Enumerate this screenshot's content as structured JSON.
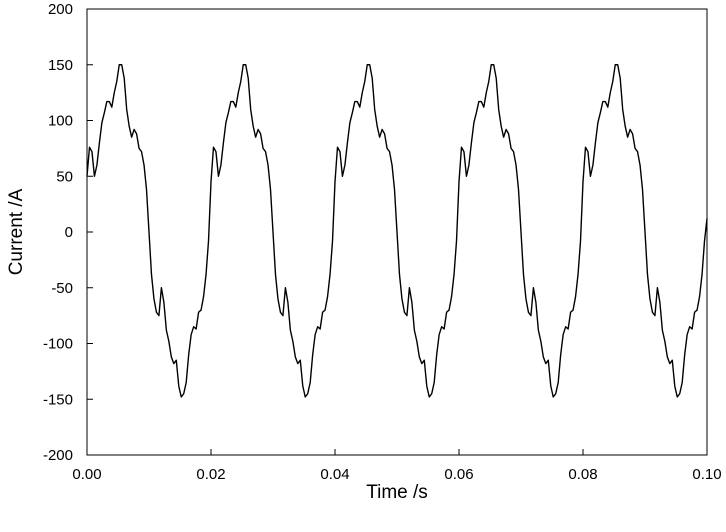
{
  "chart_data": {
    "type": "line",
    "title": "",
    "xlabel": "Time /s",
    "ylabel": "Current /A",
    "xlim": [
      0.0,
      0.1
    ],
    "ylim": [
      -200,
      200
    ],
    "x_ticks": [
      "0.00",
      "0.02",
      "0.04",
      "0.06",
      "0.08",
      "0.10"
    ],
    "x_tick_values": [
      0.0,
      0.02,
      0.04,
      0.06,
      0.08,
      0.1
    ],
    "y_ticks": [
      "-200",
      "-150",
      "-100",
      "-50",
      "0",
      "50",
      "100",
      "150",
      "200"
    ],
    "y_tick_values": [
      -200,
      -150,
      -100,
      -50,
      0,
      50,
      100,
      150,
      200
    ],
    "grid": false,
    "legend": "none",
    "line_color": "#000000",
    "series": [
      {
        "x": [
          0.0,
          0.0004,
          0.0008,
          0.0012,
          0.0016,
          0.002,
          0.0024,
          0.0028,
          0.0032,
          0.0036,
          0.004,
          0.0044,
          0.0048,
          0.0052,
          0.0056,
          0.006,
          0.0064,
          0.0068,
          0.0072,
          0.0076,
          0.008,
          0.0084,
          0.0088,
          0.0092,
          0.0096,
          0.01,
          0.0104,
          0.0108,
          0.0112,
          0.0116,
          0.012,
          0.0124,
          0.0128,
          0.0132,
          0.0136,
          0.014,
          0.0144,
          0.0148,
          0.0152,
          0.0156,
          0.016,
          0.0164,
          0.0168,
          0.0172,
          0.0176,
          0.018,
          0.0184,
          0.0188,
          0.0192,
          0.0196,
          0.02,
          0.0204,
          0.0208,
          0.0212,
          0.0216,
          0.022,
          0.0224,
          0.0228,
          0.0232,
          0.0236,
          0.024,
          0.0244,
          0.0248,
          0.0252,
          0.0256,
          0.026,
          0.0264,
          0.0268,
          0.0272,
          0.0276,
          0.028,
          0.0284,
          0.0288,
          0.0292,
          0.0296,
          0.03,
          0.0304,
          0.0308,
          0.0312,
          0.0316,
          0.032,
          0.0324,
          0.0328,
          0.0332,
          0.0336,
          0.034,
          0.0344,
          0.0348,
          0.0352,
          0.0356,
          0.036,
          0.0364,
          0.0368,
          0.0372,
          0.0376,
          0.038,
          0.0384,
          0.0388,
          0.0392,
          0.0396,
          0.04,
          0.0404,
          0.0408,
          0.0412,
          0.0416,
          0.042,
          0.0424,
          0.0428,
          0.0432,
          0.0436,
          0.044,
          0.0444,
          0.0448,
          0.0452,
          0.0456,
          0.046,
          0.0464,
          0.0468,
          0.0472,
          0.0476,
          0.048,
          0.0484,
          0.0488,
          0.0492,
          0.0496,
          0.05,
          0.0504,
          0.0508,
          0.0512,
          0.0516,
          0.052,
          0.0524,
          0.0528,
          0.0532,
          0.0536,
          0.054,
          0.0544,
          0.0548,
          0.0552,
          0.0556,
          0.056,
          0.0564,
          0.0568,
          0.0572,
          0.0576,
          0.058,
          0.0584,
          0.0588,
          0.0592,
          0.0596,
          0.06,
          0.0604,
          0.0608,
          0.0612,
          0.0616,
          0.062,
          0.0624,
          0.0628,
          0.0632,
          0.0636,
          0.064,
          0.0644,
          0.0648,
          0.0652,
          0.0656,
          0.066,
          0.0664,
          0.0668,
          0.0672,
          0.0676,
          0.068,
          0.0684,
          0.0688,
          0.0692,
          0.0696,
          0.07,
          0.0704,
          0.0708,
          0.0712,
          0.0716,
          0.072,
          0.0724,
          0.0728,
          0.0732,
          0.0736,
          0.074,
          0.0744,
          0.0748,
          0.0752,
          0.0756,
          0.076,
          0.0764,
          0.0768,
          0.0772,
          0.0776,
          0.078,
          0.0784,
          0.0788,
          0.0792,
          0.0796,
          0.08,
          0.0804,
          0.0808,
          0.0812,
          0.0816,
          0.082,
          0.0824,
          0.0828,
          0.0832,
          0.0836,
          0.084,
          0.0844,
          0.0848,
          0.0852,
          0.0856,
          0.086,
          0.0864,
          0.0868,
          0.0872,
          0.0876,
          0.088,
          0.0884,
          0.0888,
          0.0892,
          0.0896,
          0.09,
          0.0904,
          0.0908,
          0.0912,
          0.0916,
          0.092,
          0.0924,
          0.0928,
          0.0932,
          0.0936,
          0.094,
          0.0944,
          0.0948,
          0.0952,
          0.0956,
          0.096,
          0.0964,
          0.0968,
          0.0972,
          0.0976,
          0.098,
          0.0984,
          0.0988,
          0.0992,
          0.0996,
          0.1
        ],
        "y": [
          50,
          76,
          72,
          50,
          60,
          80,
          98,
          107,
          117,
          117,
          112,
          125,
          135,
          150,
          150,
          138,
          110,
          95,
          85,
          92,
          88,
          75,
          72,
          60,
          38,
          0,
          -38,
          -60,
          -72,
          -75,
          -50,
          -63,
          -88,
          -98,
          -112,
          -118,
          -115,
          -138,
          -148,
          -145,
          -135,
          -110,
          -92,
          -85,
          -87,
          -72,
          -70,
          -58,
          -38,
          -8,
          45,
          76,
          72,
          50,
          60,
          80,
          98,
          107,
          117,
          117,
          112,
          125,
          135,
          150,
          150,
          138,
          110,
          95,
          85,
          92,
          88,
          75,
          72,
          60,
          38,
          0,
          -38,
          -60,
          -72,
          -75,
          -50,
          -63,
          -88,
          -98,
          -112,
          -118,
          -115,
          -138,
          -148,
          -145,
          -135,
          -110,
          -92,
          -85,
          -87,
          -72,
          -70,
          -58,
          -38,
          -8,
          45,
          76,
          72,
          50,
          60,
          80,
          98,
          107,
          117,
          117,
          112,
          125,
          135,
          150,
          150,
          138,
          110,
          95,
          85,
          92,
          88,
          75,
          72,
          60,
          38,
          0,
          -38,
          -60,
          -72,
          -75,
          -50,
          -63,
          -88,
          -98,
          -112,
          -118,
          -115,
          -138,
          -148,
          -145,
          -135,
          -110,
          -92,
          -85,
          -87,
          -72,
          -70,
          -58,
          -38,
          -8,
          45,
          76,
          72,
          50,
          60,
          80,
          98,
          107,
          117,
          117,
          112,
          125,
          135,
          150,
          150,
          138,
          110,
          95,
          85,
          92,
          88,
          75,
          72,
          60,
          38,
          0,
          -38,
          -60,
          -72,
          -75,
          -50,
          -63,
          -88,
          -98,
          -112,
          -118,
          -115,
          -138,
          -148,
          -145,
          -135,
          -110,
          -92,
          -85,
          -87,
          -72,
          -70,
          -58,
          -38,
          -8,
          45,
          76,
          72,
          50,
          60,
          80,
          98,
          107,
          117,
          117,
          112,
          125,
          135,
          150,
          150,
          138,
          110,
          95,
          85,
          92,
          88,
          75,
          72,
          60,
          38,
          0,
          -38,
          -60,
          -72,
          -75,
          -50,
          -63,
          -88,
          -98,
          -112,
          -118,
          -115,
          -138,
          -148,
          -145,
          -135,
          -110,
          -92,
          -85,
          -87,
          -72,
          -70,
          -58,
          -38,
          -8,
          12
        ]
      }
    ]
  }
}
